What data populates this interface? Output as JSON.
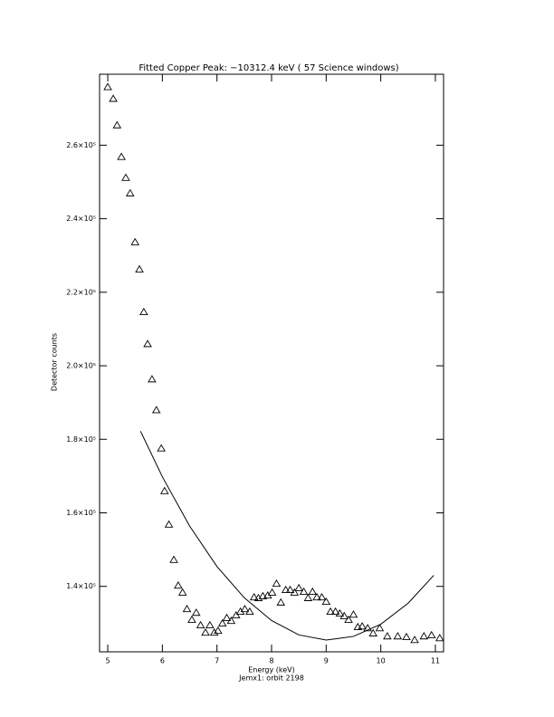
{
  "chart_data": {
    "type": "scatter",
    "title": "Fitted Copper Peak:      −10312.4 keV (      57 Science windows)",
    "xlabel": "Energy (keV)",
    "ylabel": "Detector counts",
    "subtitle": "Jemx1: orbit 2198",
    "color": "#000000",
    "marker": "triangle",
    "xlim": [
      4.85,
      11.15
    ],
    "ylim": [
      122200,
      279300
    ],
    "xticks": [
      5,
      6,
      7,
      8,
      9,
      10,
      11
    ],
    "yticks": [
      {
        "value": 140000,
        "label": "1.4×10⁵"
      },
      {
        "value": 160000,
        "label": "1.6×10⁵"
      },
      {
        "value": 180000,
        "label": "1.8×10⁵"
      },
      {
        "value": 200000,
        "label": "2.0×10⁵"
      },
      {
        "value": 220000,
        "label": "2.2×10⁵"
      },
      {
        "value": 240000,
        "label": "2.4×10⁵"
      },
      {
        "value": 260000,
        "label": "2.6×10⁵"
      }
    ],
    "points": {
      "x": [
        5.0,
        5.1,
        5.17,
        5.25,
        5.33,
        5.41,
        5.5,
        5.58,
        5.66,
        5.73,
        5.81,
        5.89,
        5.98,
        6.04,
        6.12,
        6.21,
        6.29,
        6.37,
        6.45,
        6.54,
        6.62,
        6.7,
        6.79,
        6.87,
        6.95,
        7.02,
        7.1,
        7.18,
        7.26,
        7.35,
        7.43,
        7.51,
        7.6,
        7.68,
        7.76,
        7.84,
        7.93,
        8.01,
        8.09,
        8.17,
        8.26,
        8.34,
        8.42,
        8.5,
        8.59,
        8.67,
        8.75,
        8.83,
        8.92,
        9.0,
        9.08,
        9.17,
        9.25,
        9.33,
        9.41,
        9.5,
        9.58,
        9.66,
        9.76,
        9.86,
        9.98,
        10.12,
        10.31,
        10.47,
        10.62,
        10.79,
        10.93,
        11.08
      ],
      "values": [
        275800,
        272600,
        265400,
        256800,
        251100,
        246900,
        233600,
        226200,
        214600,
        205900,
        196300,
        187900,
        177500,
        165900,
        156800,
        147200,
        140200,
        138300,
        133800,
        130900,
        132800,
        129400,
        127400,
        129400,
        127400,
        127900,
        129900,
        131400,
        130600,
        132100,
        133100,
        133800,
        133100,
        137000,
        136800,
        137300,
        137500,
        138300,
        140700,
        135600,
        139000,
        139000,
        138300,
        139500,
        138500,
        136800,
        138500,
        137000,
        137000,
        135800,
        133100,
        133100,
        132600,
        131900,
        130900,
        132300,
        128900,
        129100,
        128600,
        127200,
        128600,
        126400,
        126400,
        126200,
        125400,
        126400,
        126700,
        125900
      ]
    },
    "fit": {
      "x": [
        5.6,
        6.0,
        6.5,
        7.0,
        7.5,
        8.0,
        8.5,
        9.0,
        9.5,
        10.0,
        10.5,
        10.97
      ],
      "values": [
        182200,
        169800,
        156400,
        145400,
        136900,
        130700,
        126800,
        125400,
        126400,
        129700,
        135400,
        143000
      ]
    }
  }
}
